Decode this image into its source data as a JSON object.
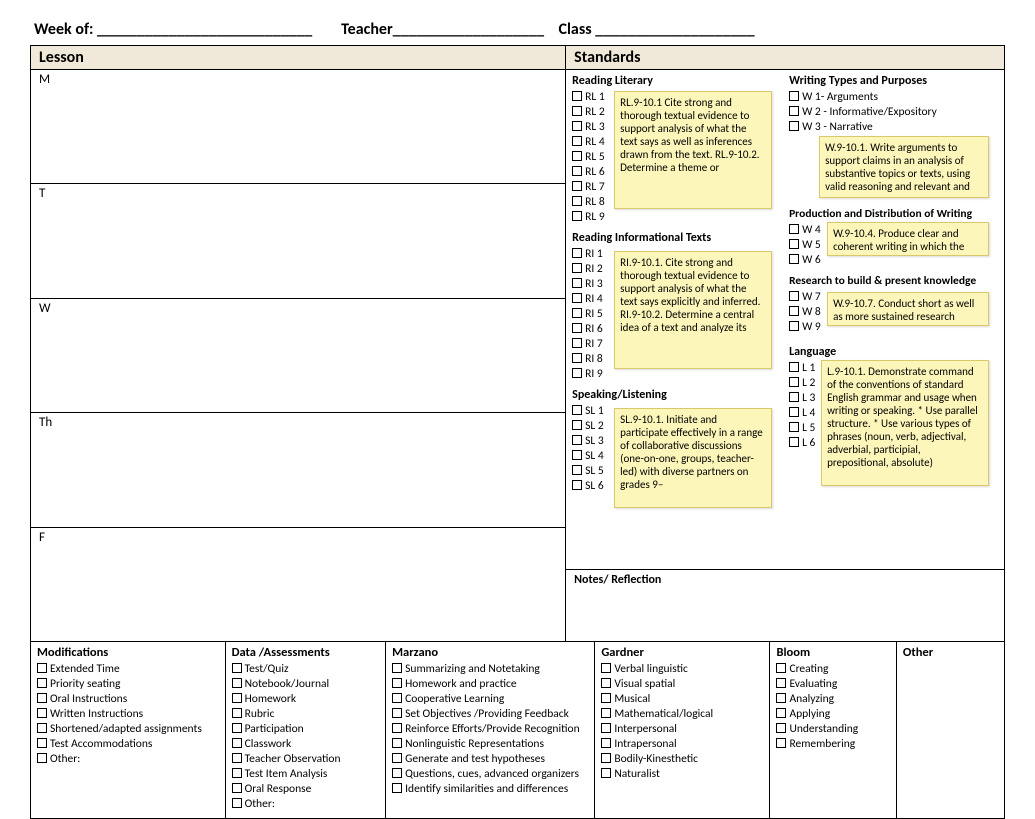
{
  "header": {
    "week_of": "Week of:",
    "teacher": "Teacher",
    "class": "Class",
    "blank1": "___________________________",
    "blank2": "___________________",
    "blank3": "____________________"
  },
  "titles": {
    "lesson": "Lesson",
    "standards": "Standards"
  },
  "days": [
    "M",
    "T",
    "W",
    "Th",
    "F"
  ],
  "standards": {
    "col1": {
      "reading_literary": {
        "title": "Reading Literary",
        "items": [
          "RL 1",
          "RL 2",
          "RL 3",
          "RL 4",
          "RL 5",
          "RL 6",
          "RL 7",
          "RL 8",
          "RL 9"
        ],
        "note": "RL.9-10.1 Cite strong and thorough textual evidence to support analysis of what the text says as well as inferences drawn from the text.\n\nRL.9-10.2. Determine a theme or"
      },
      "reading_info": {
        "title": "Reading Informational Texts",
        "items": [
          "RI 1",
          "RI 2",
          "RI 3",
          "RI 4",
          "RI 5",
          "RI 6",
          "RI 7",
          "RI 8",
          "RI 9"
        ],
        "note": "RI.9-10.1. Cite strong and thorough textual evidence to support analysis of what the text says explicitly and inferred.\n\nRI.9-10.2. Determine a central idea of a text and analyze its"
      },
      "speaking": {
        "title": "Speaking/Listening",
        "items": [
          "SL 1",
          "SL 2",
          "SL 3",
          "SL 4",
          "SL 5",
          "SL 6"
        ],
        "note": "SL.9-10.1. Initiate and participate effectively in a range of collaborative discussions (one-on-one, groups, teacher-led) with diverse partners on grades 9–"
      }
    },
    "col2": {
      "writing_types": {
        "title": "Writing Types and Purposes",
        "items": [
          "W 1- Arguments",
          "W 2 - Informative/Expository",
          "W 3 - Narrative"
        ],
        "note": "W.9-10.1. Write arguments to support claims in an analysis of substantive topics or texts, using valid reasoning and relevant and"
      },
      "production": {
        "title": "Production and Distribution of Writing",
        "items": [
          "W 4",
          "W 5",
          "W 6"
        ],
        "note": "W.9-10.4. Produce clear and coherent writing in which the"
      },
      "research": {
        "title": "Research to build & present knowledge",
        "items": [
          "W 7",
          "W 8",
          "W 9"
        ],
        "note": "W.9-10.7. Conduct short as well as more sustained research projects to"
      },
      "language": {
        "title": "Language",
        "items": [
          "L 1",
          "L 2",
          "L 3",
          "L 4",
          "L 5",
          "L 6"
        ],
        "note": "L.9-10.1. Demonstrate command of the conventions of standard English grammar and usage when writing or speaking.\n*  Use parallel structure.\n*  Use various types of phrases (noun, verb, adjectival, adverbial, participial, prepositional, absolute)"
      }
    }
  },
  "reflection_title": "Notes/ Reflection",
  "bottom": {
    "modifications": {
      "title": "Modifications",
      "items": [
        "Extended Time",
        "Priority seating",
        "Oral Instructions",
        "Written Instructions",
        "Shortened/adapted assignments",
        "Test Accommodations",
        "Other:"
      ]
    },
    "data": {
      "title": "Data /Assessments",
      "items": [
        "Test/Quiz",
        "Notebook/Journal",
        "Homework",
        "Rubric",
        "Participation",
        "Classwork",
        "Teacher Observation",
        "Test Item Analysis",
        "Oral Response",
        "Other:"
      ]
    },
    "marzano": {
      "title": "Marzano",
      "items": [
        "Summarizing and Notetaking",
        "Homework and practice",
        "Cooperative Learning",
        "Set Objectives /Providing Feedback",
        "Reinforce Efforts/Provide Recognition",
        "Nonlinguistic Representations",
        "Generate and test hypotheses",
        "Questions, cues, advanced organizers",
        "Identify similarities and differences"
      ]
    },
    "gardner": {
      "title": "Gardner",
      "items": [
        "Verbal linguistic",
        "Visual spatial",
        "Musical",
        "Mathematical/logical",
        "Interpersonal",
        "Intrapersonal",
        "Bodily-Kinesthetic",
        "Naturalist"
      ]
    },
    "bloom": {
      "title": "Bloom",
      "items": [
        "Creating",
        "Evaluating",
        "Analyzing",
        "Applying",
        "Understanding",
        "Remembering"
      ]
    },
    "other": {
      "title": "Other",
      "items": []
    }
  },
  "style": {
    "note_bg": "#fcf6ba",
    "note_border": "#d9c96a",
    "header_bg": "#f0e8d8"
  }
}
